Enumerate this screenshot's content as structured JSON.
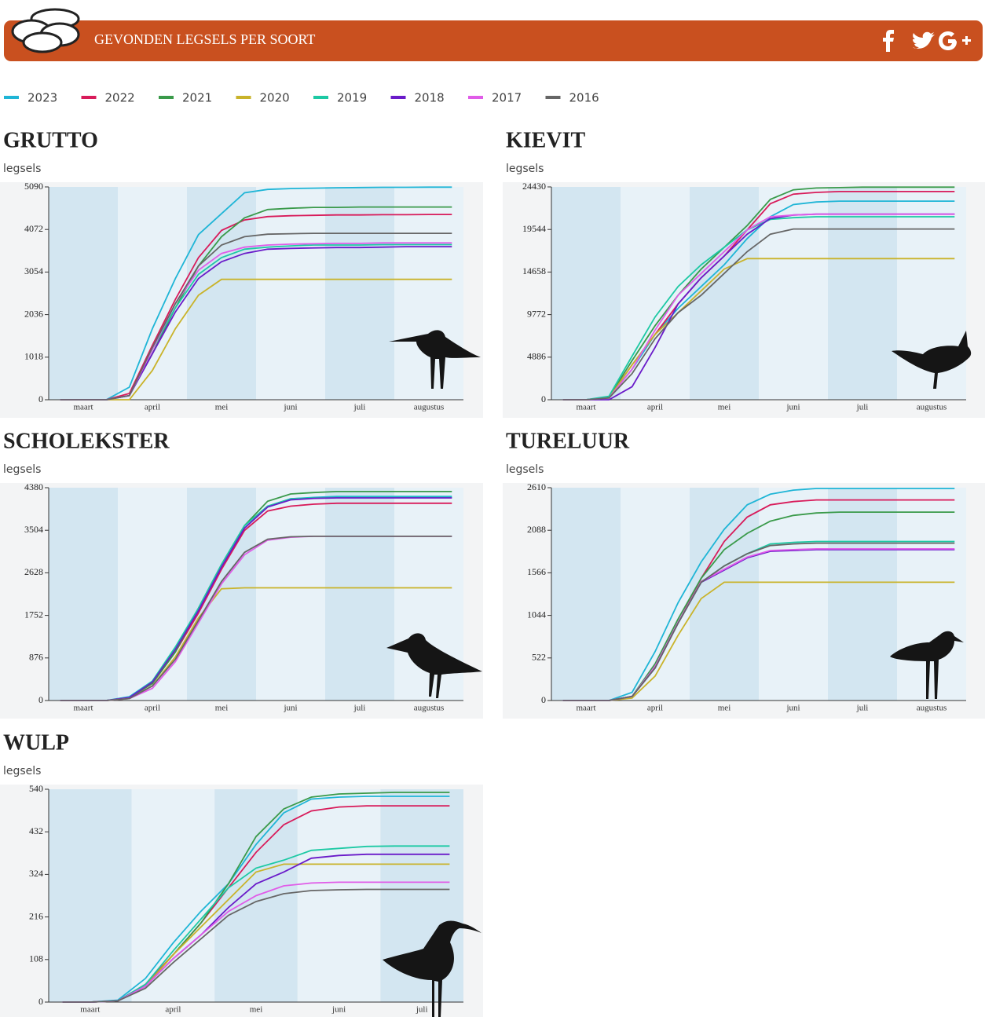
{
  "header": {
    "title": "GEVONDEN LEGSELS PER SOORT"
  },
  "chart_data": [
    {
      "type": "line",
      "title": "GRUTTO",
      "y_label": "legsels",
      "categories": [
        null,
        "maart",
        null,
        null,
        "april",
        null,
        null,
        "mei",
        null,
        null,
        "juni",
        null,
        null,
        "juli",
        null,
        null,
        "augustus",
        null
      ],
      "ylim": [
        0,
        5090
      ],
      "yticks": [
        0,
        1018,
        2036,
        3054,
        4072,
        5090
      ],
      "series": [
        {
          "name": "2023",
          "color": "#1fb5d6",
          "values": [
            0,
            0,
            0,
            300,
            1700,
            2900,
            3950,
            4450,
            4950,
            5030,
            5050,
            5060,
            5070,
            5075,
            5080,
            5080,
            5085,
            5085
          ]
        },
        {
          "name": "2022",
          "color": "#d81b5a",
          "values": [
            0,
            0,
            0,
            150,
            1300,
            2400,
            3400,
            4050,
            4300,
            4380,
            4400,
            4410,
            4420,
            4420,
            4425,
            4425,
            4430,
            4430
          ]
        },
        {
          "name": "2021",
          "color": "#3a9a4a",
          "values": [
            0,
            0,
            0,
            100,
            1100,
            2200,
            3200,
            3900,
            4350,
            4550,
            4580,
            4600,
            4600,
            4610,
            4610,
            4610,
            4610,
            4610
          ]
        },
        {
          "name": "2020",
          "color": "#c9b32a",
          "values": [
            0,
            0,
            0,
            0,
            700,
            1700,
            2500,
            2880,
            2880,
            2880,
            2880,
            2880,
            2880,
            2880,
            2880,
            2880,
            2880,
            2880
          ]
        },
        {
          "name": "2019",
          "color": "#1dc9a4",
          "values": [
            0,
            0,
            0,
            100,
            1200,
            2200,
            3000,
            3400,
            3600,
            3650,
            3680,
            3700,
            3700,
            3700,
            3710,
            3710,
            3710,
            3710
          ]
        },
        {
          "name": "2018",
          "color": "#6a1bc9",
          "values": [
            0,
            0,
            0,
            100,
            1100,
            2100,
            2900,
            3300,
            3500,
            3600,
            3620,
            3630,
            3640,
            3640,
            3650,
            3660,
            3660,
            3660
          ]
        },
        {
          "name": "2017",
          "color": "#e05ce8",
          "values": [
            0,
            0,
            0,
            100,
            1200,
            2300,
            3100,
            3500,
            3650,
            3700,
            3720,
            3730,
            3740,
            3740,
            3750,
            3750,
            3750,
            3750
          ]
        },
        {
          "name": "2016",
          "color": "#666666",
          "values": [
            0,
            0,
            0,
            100,
            1250,
            2300,
            3200,
            3700,
            3900,
            3960,
            3970,
            3980,
            3980,
            3980,
            3980,
            3980,
            3980,
            3980
          ]
        }
      ]
    },
    {
      "type": "line",
      "title": "KIEVIT",
      "y_label": "legsels",
      "categories": [
        null,
        "maart",
        null,
        null,
        "april",
        null,
        null,
        "mei",
        null,
        null,
        "juni",
        null,
        null,
        "juli",
        null,
        null,
        "augustus",
        null
      ],
      "ylim": [
        0,
        24430
      ],
      "yticks": [
        0,
        4886,
        9772,
        14658,
        19544,
        24430
      ],
      "series": [
        {
          "name": "2023",
          "color": "#1fb5d6",
          "values": [
            0,
            0,
            300,
            3500,
            7500,
            10500,
            13000,
            15500,
            18500,
            21000,
            22400,
            22700,
            22800,
            22800,
            22800,
            22800,
            22800,
            22800
          ]
        },
        {
          "name": "2022",
          "color": "#d81b5a",
          "values": [
            0,
            0,
            300,
            4000,
            7500,
            11000,
            14000,
            16500,
            19500,
            22500,
            23600,
            23800,
            23900,
            23900,
            23900,
            23900,
            23900,
            23900
          ]
        },
        {
          "name": "2021",
          "color": "#3a9a4a",
          "values": [
            0,
            0,
            300,
            4500,
            8500,
            12000,
            15000,
            17500,
            20000,
            23000,
            24100,
            24300,
            24350,
            24400,
            24400,
            24400,
            24400,
            24400
          ]
        },
        {
          "name": "2020",
          "color": "#c9b32a",
          "values": [
            0,
            0,
            200,
            4000,
            7500,
            10000,
            12500,
            15000,
            16200,
            16200,
            16200,
            16200,
            16200,
            16200,
            16200,
            16200,
            16200,
            16200
          ]
        },
        {
          "name": "2019",
          "color": "#1dc9a4",
          "values": [
            0,
            0,
            400,
            5000,
            9500,
            13000,
            15500,
            17500,
            19500,
            20700,
            20900,
            21000,
            21000,
            21000,
            21000,
            21000,
            21000,
            21000
          ]
        },
        {
          "name": "2018",
          "color": "#6a1bc9",
          "values": [
            0,
            0,
            0,
            1500,
            6000,
            11000,
            14000,
            16500,
            19000,
            20800,
            21200,
            21300,
            21300,
            21300,
            21300,
            21300,
            21300,
            21300
          ]
        },
        {
          "name": "2017",
          "color": "#e05ce8",
          "values": [
            0,
            0,
            200,
            3500,
            8000,
            12000,
            14500,
            17000,
            19500,
            21000,
            21200,
            21300,
            21300,
            21300,
            21300,
            21300,
            21300,
            21300
          ]
        },
        {
          "name": "2016",
          "color": "#666666",
          "values": [
            0,
            0,
            200,
            3000,
            7000,
            10000,
            12000,
            14500,
            17000,
            19000,
            19600,
            19600,
            19600,
            19600,
            19600,
            19600,
            19600,
            19600
          ]
        }
      ]
    },
    {
      "type": "line",
      "title": "SCHOLEKSTER",
      "y_label": "legsels",
      "categories": [
        null,
        "maart",
        null,
        null,
        "april",
        null,
        null,
        "mei",
        null,
        null,
        "juni",
        null,
        null,
        "juli",
        null,
        null,
        "augustus",
        null
      ],
      "ylim": [
        0,
        4380
      ],
      "yticks": [
        0,
        876,
        1752,
        2628,
        3504,
        4380
      ],
      "series": [
        {
          "name": "2023",
          "color": "#1fb5d6",
          "values": [
            0,
            0,
            0,
            80,
            400,
            1100,
            1900,
            2800,
            3600,
            4000,
            4150,
            4180,
            4200,
            4200,
            4200,
            4200,
            4200,
            4200
          ]
        },
        {
          "name": "2022",
          "color": "#d81b5a",
          "values": [
            0,
            0,
            0,
            60,
            350,
            1000,
            1800,
            2700,
            3500,
            3900,
            4000,
            4040,
            4060,
            4060,
            4060,
            4060,
            4060,
            4060
          ]
        },
        {
          "name": "2021",
          "color": "#3a9a4a",
          "values": [
            0,
            0,
            0,
            60,
            350,
            1000,
            1900,
            2800,
            3600,
            4100,
            4250,
            4280,
            4300,
            4300,
            4300,
            4300,
            4300,
            4300
          ]
        },
        {
          "name": "2020",
          "color": "#c9b32a",
          "values": [
            0,
            0,
            0,
            40,
            300,
            900,
            1700,
            2300,
            2320,
            2320,
            2320,
            2320,
            2320,
            2320,
            2320,
            2320,
            2320,
            2320
          ]
        },
        {
          "name": "2019",
          "color": "#1dc9a4",
          "values": [
            0,
            0,
            0,
            60,
            400,
            1100,
            1900,
            2800,
            3600,
            4000,
            4150,
            4170,
            4180,
            4180,
            4180,
            4180,
            4180,
            4180
          ]
        },
        {
          "name": "2018",
          "color": "#6a1bc9",
          "values": [
            0,
            0,
            0,
            60,
            380,
            1050,
            1850,
            2750,
            3550,
            3980,
            4130,
            4160,
            4170,
            4170,
            4170,
            4170,
            4170,
            4170
          ]
        },
        {
          "name": "2017",
          "color": "#e05ce8",
          "values": [
            0,
            0,
            0,
            40,
            250,
            800,
            1600,
            2400,
            3000,
            3300,
            3360,
            3380,
            3380,
            3380,
            3380,
            3380,
            3380,
            3380
          ]
        },
        {
          "name": "2016",
          "color": "#666666",
          "values": [
            0,
            0,
            0,
            40,
            300,
            850,
            1650,
            2450,
            3050,
            3320,
            3370,
            3380,
            3380,
            3380,
            3380,
            3380,
            3380,
            3380
          ]
        }
      ]
    },
    {
      "type": "line",
      "title": "TURELUUR",
      "y_label": "legsels",
      "categories": [
        null,
        "maart",
        null,
        null,
        "april",
        null,
        null,
        "mei",
        null,
        null,
        "juni",
        null,
        null,
        "juli",
        null,
        null,
        "augustus",
        null
      ],
      "ylim": [
        0,
        2610
      ],
      "yticks": [
        0,
        522,
        1044,
        1566,
        2088,
        2610
      ],
      "series": [
        {
          "name": "2023",
          "color": "#1fb5d6",
          "values": [
            0,
            0,
            0,
            100,
            600,
            1200,
            1700,
            2100,
            2400,
            2530,
            2580,
            2600,
            2600,
            2600,
            2600,
            2600,
            2600,
            2600
          ]
        },
        {
          "name": "2022",
          "color": "#d81b5a",
          "values": [
            0,
            0,
            0,
            50,
            400,
            950,
            1500,
            1950,
            2250,
            2400,
            2440,
            2460,
            2460,
            2460,
            2460,
            2460,
            2460,
            2460
          ]
        },
        {
          "name": "2021",
          "color": "#3a9a4a",
          "values": [
            0,
            0,
            0,
            50,
            450,
            1000,
            1500,
            1850,
            2050,
            2200,
            2270,
            2300,
            2310,
            2310,
            2310,
            2310,
            2310,
            2310
          ]
        },
        {
          "name": "2020",
          "color": "#c9b32a",
          "values": [
            0,
            0,
            0,
            30,
            300,
            800,
            1250,
            1450,
            1450,
            1450,
            1450,
            1450,
            1450,
            1450,
            1450,
            1450,
            1450,
            1450
          ]
        },
        {
          "name": "2019",
          "color": "#1dc9a4",
          "values": [
            0,
            0,
            0,
            50,
            400,
            950,
            1450,
            1650,
            1800,
            1920,
            1940,
            1950,
            1950,
            1950,
            1950,
            1950,
            1950,
            1950
          ]
        },
        {
          "name": "2018",
          "color": "#6a1bc9",
          "values": [
            0,
            0,
            0,
            50,
            400,
            950,
            1450,
            1600,
            1750,
            1830,
            1840,
            1850,
            1850,
            1850,
            1850,
            1850,
            1850,
            1850
          ]
        },
        {
          "name": "2017",
          "color": "#e05ce8",
          "values": [
            0,
            0,
            0,
            50,
            420,
            960,
            1460,
            1610,
            1760,
            1840,
            1850,
            1860,
            1860,
            1860,
            1860,
            1860,
            1860,
            1860
          ]
        },
        {
          "name": "2016",
          "color": "#666666",
          "values": [
            0,
            0,
            0,
            50,
            400,
            950,
            1450,
            1650,
            1800,
            1900,
            1920,
            1930,
            1930,
            1930,
            1930,
            1930,
            1930,
            1930
          ]
        }
      ]
    },
    {
      "type": "line",
      "title": "WULP",
      "y_label": "legsels",
      "categories": [
        null,
        "maart",
        null,
        null,
        "april",
        null,
        null,
        "mei",
        null,
        null,
        "juni",
        null,
        null,
        "juli",
        null
      ],
      "ylim": [
        0,
        540
      ],
      "yticks": [
        0,
        108,
        216,
        324,
        432,
        540
      ],
      "series": [
        {
          "name": "2023",
          "color": "#1fb5d6",
          "values": [
            0,
            0,
            5,
            60,
            150,
            230,
            300,
            400,
            480,
            515,
            520,
            522,
            522,
            522,
            522
          ]
        },
        {
          "name": "2022",
          "color": "#d81b5a",
          "values": [
            0,
            0,
            3,
            45,
            120,
            200,
            290,
            380,
            450,
            485,
            495,
            498,
            498,
            498,
            498
          ]
        },
        {
          "name": "2021",
          "color": "#3a9a4a",
          "values": [
            0,
            0,
            3,
            40,
            120,
            200,
            300,
            420,
            490,
            520,
            528,
            530,
            532,
            532,
            532
          ]
        },
        {
          "name": "2020",
          "color": "#c9b32a",
          "values": [
            0,
            0,
            3,
            40,
            120,
            190,
            260,
            330,
            350,
            350,
            350,
            350,
            350,
            350,
            350
          ]
        },
        {
          "name": "2019",
          "color": "#1dc9a4",
          "values": [
            0,
            0,
            3,
            45,
            130,
            210,
            290,
            340,
            360,
            385,
            390,
            395,
            396,
            396,
            396
          ]
        },
        {
          "name": "2018",
          "color": "#6a1bc9",
          "values": [
            0,
            0,
            3,
            40,
            110,
            170,
            240,
            300,
            330,
            365,
            372,
            375,
            375,
            375,
            375
          ]
        },
        {
          "name": "2017",
          "color": "#e05ce8",
          "values": [
            0,
            0,
            3,
            40,
            110,
            170,
            230,
            270,
            295,
            302,
            304,
            304,
            304,
            304,
            304
          ]
        },
        {
          "name": "2016",
          "color": "#666666",
          "values": [
            0,
            0,
            3,
            35,
            100,
            160,
            220,
            255,
            275,
            283,
            285,
            286,
            286,
            286,
            286
          ]
        }
      ]
    }
  ]
}
